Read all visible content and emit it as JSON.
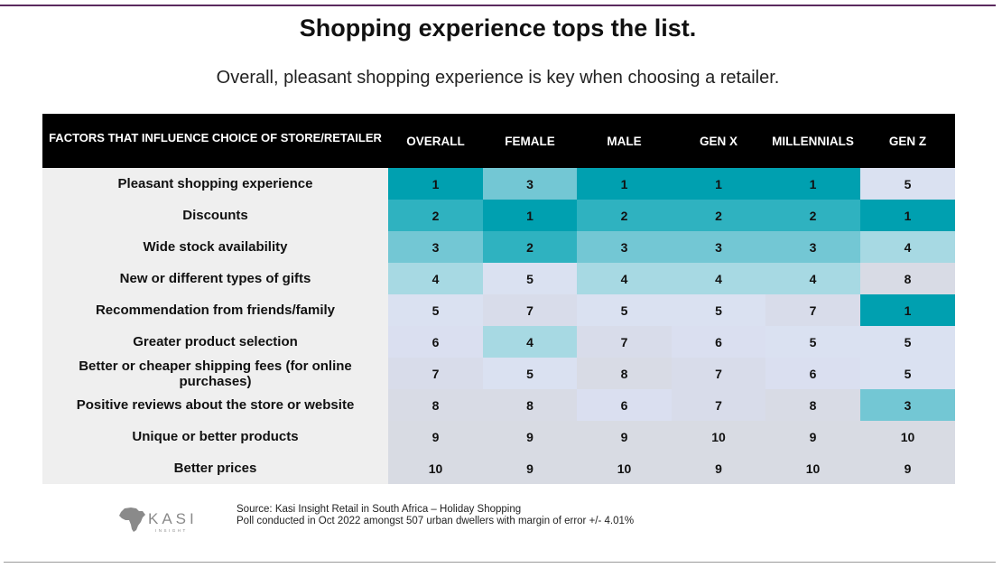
{
  "title": "Shopping experience tops the list.",
  "subtitle": "Overall, pleasant shopping experience is key when choosing a retailer.",
  "chart_data": {
    "type": "table",
    "columns": [
      "FACTORS THAT INFLUENCE CHOICE OF STORE/RETAILER",
      "OVERALL",
      "FEMALE",
      "MALE",
      "GEN X",
      "MILLENNIALS",
      "GEN Z"
    ],
    "rows": [
      {
        "factor": "Pleasant shopping experience",
        "values": [
          "1",
          "3",
          "1",
          "1",
          "1",
          "5"
        ]
      },
      {
        "factor": "Discounts",
        "values": [
          "2",
          "1",
          "2",
          "2",
          "2",
          "1"
        ]
      },
      {
        "factor": "Wide stock availability",
        "values": [
          "3",
          "2",
          "3",
          "3",
          "3",
          "4"
        ]
      },
      {
        "factor": "New or different types of gifts",
        "values": [
          "4",
          "5",
          "4",
          "4",
          "4",
          "8"
        ]
      },
      {
        "factor": "Recommendation from friends/family",
        "values": [
          "5",
          "7",
          "5",
          "5",
          "7",
          "1"
        ]
      },
      {
        "factor": "Greater product selection",
        "values": [
          "6",
          "4",
          "7",
          "6",
          "5",
          "5"
        ]
      },
      {
        "factor": "Better or cheaper shipping fees (for online purchases)",
        "values": [
          "7",
          "5",
          "8",
          "7",
          "6",
          "5"
        ]
      },
      {
        "factor": "Positive reviews about the store or website",
        "values": [
          "8",
          "8",
          "6",
          "7",
          "8",
          "3"
        ]
      },
      {
        "factor": "Unique or better products",
        "values": [
          "9",
          "9",
          "9",
          "10",
          "9",
          "10"
        ]
      },
      {
        "factor": "Better prices",
        "values": [
          "10",
          "9",
          "10",
          "9",
          "10",
          "9"
        ]
      }
    ],
    "heat_colors": {
      "1": "#00a0b0",
      "2": "#2fb2c0",
      "3": "#73c7d4",
      "4": "#a7d9e3",
      "5": "#dae1f1",
      "6": "#dadff0",
      "7": "#d8dcea",
      "8": "#d8dbe5",
      "9": "#d8dbe3",
      "10": "#d8dbe3"
    }
  },
  "footer": {
    "logo_text": "KASI",
    "logo_subtext": "INSIGHT",
    "source": "Source: Kasi Insight Retail in South Africa – Holiday Shopping",
    "poll": "Poll conducted in Oct 2022 amongst 507 urban dwellers with margin of error +/- 4.01%"
  },
  "colors": {
    "header_bg": "#000000",
    "factor_bg": "#efefef",
    "accent": "#5b2a5e"
  }
}
